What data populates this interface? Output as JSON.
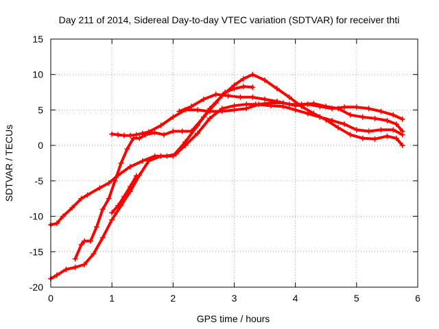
{
  "chart_data": {
    "type": "line",
    "title": "Day 211 of 2014, Sidereal Day-to-day VTEC variation (SDTVAR) for receiver thti",
    "xlabel": "GPS time / hours",
    "ylabel": "SDTVAR / TECUs",
    "xlim": [
      0,
      6
    ],
    "ylim": [
      -20,
      15
    ],
    "xticks": [
      0,
      1,
      2,
      3,
      4,
      5,
      6
    ],
    "yticks": [
      -20,
      -15,
      -10,
      -5,
      0,
      5,
      10,
      15
    ],
    "grid": true,
    "marker": "plus",
    "series_color": "#ff0000",
    "series": [
      {
        "x": [
          0.0,
          0.1,
          0.2,
          0.35,
          0.5,
          0.6,
          0.8,
          0.95,
          1.1,
          1.3,
          1.5,
          1.7,
          1.9,
          2.05,
          2.2,
          2.4,
          2.6,
          2.8,
          3.0,
          3.2,
          3.35,
          3.6,
          3.8,
          4.0,
          4.2,
          4.4,
          4.6,
          4.8,
          5.0,
          5.2,
          5.4,
          5.6,
          5.75
        ],
        "y": [
          -11.2,
          -11.0,
          -10.0,
          -8.8,
          -7.5,
          -7.0,
          -6.0,
          -5.3,
          -4.2,
          -3.0,
          -2.2,
          -1.5,
          -1.5,
          -1.2,
          0.0,
          1.7,
          3.8,
          5.2,
          5.6,
          5.8,
          5.8,
          5.6,
          5.5,
          5.0,
          4.5,
          4.0,
          3.5,
          3.0,
          2.2,
          2.0,
          2.2,
          2.2,
          1.5
        ]
      },
      {
        "x": [
          0.0,
          0.1,
          0.25,
          0.4,
          0.55,
          0.7,
          0.85,
          1.0,
          1.15,
          1.3,
          1.45,
          1.6,
          1.8,
          2.0,
          2.2,
          2.4,
          2.6,
          2.8,
          3.0,
          3.15,
          3.3,
          3.5,
          3.7,
          3.9,
          4.1,
          4.3,
          4.5,
          4.7,
          4.9,
          5.1,
          5.3,
          5.5,
          5.65,
          5.75
        ],
        "y": [
          -18.8,
          -18.3,
          -17.5,
          -17.2,
          -16.8,
          -15.3,
          -13.0,
          -10.5,
          -8.5,
          -6.5,
          -4.2,
          -2.2,
          -1.5,
          -1.5,
          0.5,
          2.8,
          5.2,
          7.0,
          8.5,
          9.4,
          10.0,
          9.2,
          8.0,
          6.8,
          5.5,
          4.5,
          3.6,
          2.5,
          1.5,
          1.0,
          0.9,
          1.3,
          1.0,
          0.0
        ]
      },
      {
        "x": [
          0.4,
          0.5,
          0.55,
          0.65,
          0.75,
          0.85,
          0.95,
          1.05,
          1.15,
          1.25,
          1.35,
          1.45,
          1.55,
          1.7,
          1.85,
          2.0,
          2.15,
          2.3,
          2.5,
          2.7,
          2.85,
          3.0,
          3.15,
          3.3
        ],
        "y": [
          -16.0,
          -14.0,
          -13.5,
          -13.5,
          -11.5,
          -9.0,
          -7.5,
          -5.0,
          -2.5,
          -0.5,
          1.0,
          1.0,
          1.5,
          1.8,
          1.5,
          2.0,
          2.0,
          2.0,
          4.0,
          6.0,
          7.5,
          8.0,
          8.3,
          8.2
        ]
      },
      {
        "x": [
          1.0,
          1.1,
          1.2,
          1.3,
          1.4,
          1.5,
          1.6,
          1.8,
          2.0,
          2.2,
          2.4,
          2.6,
          2.8,
          3.0,
          3.2,
          3.4,
          3.6,
          3.8,
          4.0,
          4.2,
          4.4,
          4.6,
          4.8,
          5.0,
          5.2,
          5.4,
          5.6,
          5.75
        ],
        "y": [
          1.6,
          1.5,
          1.4,
          1.4,
          1.5,
          1.7,
          1.9,
          2.8,
          4.0,
          5.0,
          5.0,
          4.8,
          4.8,
          5.0,
          5.2,
          5.8,
          6.0,
          6.0,
          5.6,
          5.8,
          5.5,
          5.2,
          5.4,
          5.4,
          5.2,
          4.8,
          4.3,
          3.7
        ]
      },
      {
        "x": [
          1.0,
          1.1,
          1.2,
          1.3,
          1.4
        ],
        "y": [
          -9.5,
          -8.5,
          -7.2,
          -5.8,
          -4.3
        ]
      },
      {
        "x": [
          2.1,
          2.3,
          2.5,
          2.7,
          2.9,
          3.1,
          3.3,
          3.5,
          3.7,
          3.9,
          4.1,
          4.3,
          4.5,
          4.7,
          4.9,
          5.1,
          5.3,
          5.5,
          5.65,
          5.75
        ],
        "y": [
          4.8,
          5.5,
          6.5,
          7.2,
          7.0,
          6.8,
          6.8,
          6.5,
          6.2,
          5.8,
          5.8,
          5.9,
          5.5,
          5.2,
          4.3,
          4.0,
          3.8,
          3.5,
          3.0,
          2.0
        ]
      }
    ]
  }
}
